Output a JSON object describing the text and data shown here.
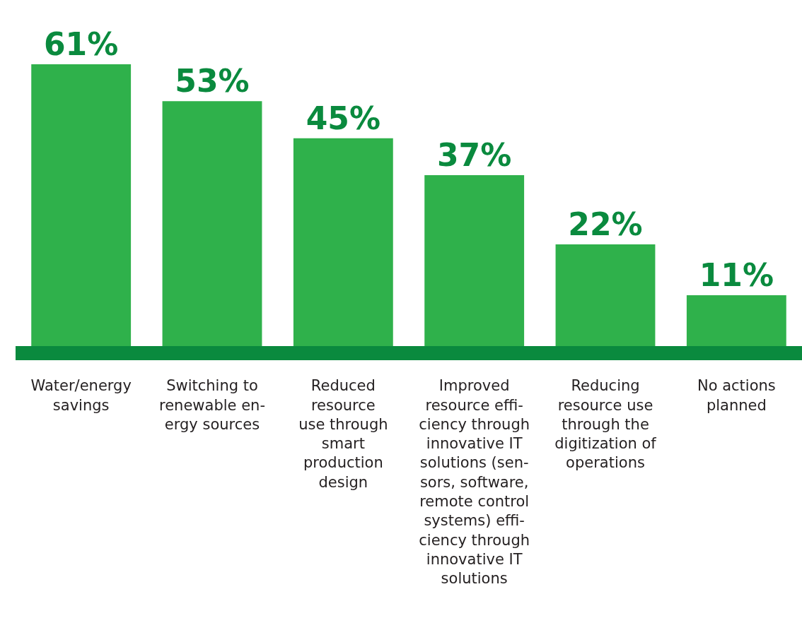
{
  "chart_data": {
    "type": "bar",
    "categories": [
      "Water/energy\nsavings",
      "Switching to\nrenewable en-\nergy sources",
      "Reduced\nresource\nuse through\nsmart\nproduction\ndesign",
      "Improved\nresource effi-\nciency through\ninnovative IT\nsolutions (sen-\nsors, software,\nremote control\nsystems) effi-\nciency through\ninnovative IT\nsolutions",
      "Reducing\nresource use\nthrough the\ndigitization of\noperations",
      "No actions\nplanned"
    ],
    "values": [
      61,
      53,
      45,
      37,
      22,
      11
    ],
    "value_labels": [
      "61%",
      "53%",
      "45%",
      "37%",
      "22%",
      "11%"
    ],
    "color": "#2fb14b",
    "tick_labels": "x"
  }
}
